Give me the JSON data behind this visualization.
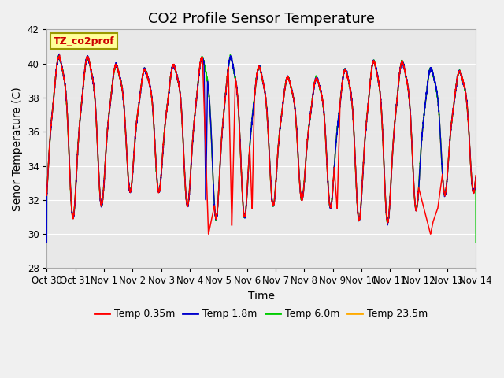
{
  "title": "CO2 Profile Sensor Temperature",
  "xlabel": "Time",
  "ylabel": "Senor Temperature (C)",
  "ylim": [
    28,
    42
  ],
  "ytick_labels": [
    28,
    30,
    32,
    34,
    36,
    38,
    40,
    42
  ],
  "xtick_labels": [
    "Oct 30",
    "Oct 31",
    "Nov 1",
    "Nov 2",
    "Nov 3",
    "Nov 4",
    "Nov 5",
    "Nov 6",
    "Nov 7",
    "Nov 8",
    "Nov 9",
    "Nov 10",
    "Nov 11",
    "Nov 12",
    "Nov 13",
    "Nov 14"
  ],
  "series_colors": [
    "#ff0000",
    "#0000cc",
    "#00cc00",
    "#ffaa00"
  ],
  "series_labels": [
    "Temp 0.35m",
    "Temp 1.8m",
    "Temp 6.0m",
    "Temp 23.5m"
  ],
  "legend_label": "TZ_co2prof",
  "legend_label_color": "#cc0000",
  "legend_box_facecolor": "#ffff99",
  "legend_box_edgecolor": "#999900",
  "plot_bg": "#e8e8e8",
  "grid_color": "#ffffff",
  "fig_bg": "#f0f0f0",
  "title_fontsize": 13,
  "axis_label_fontsize": 10,
  "tick_fontsize": 8.5
}
